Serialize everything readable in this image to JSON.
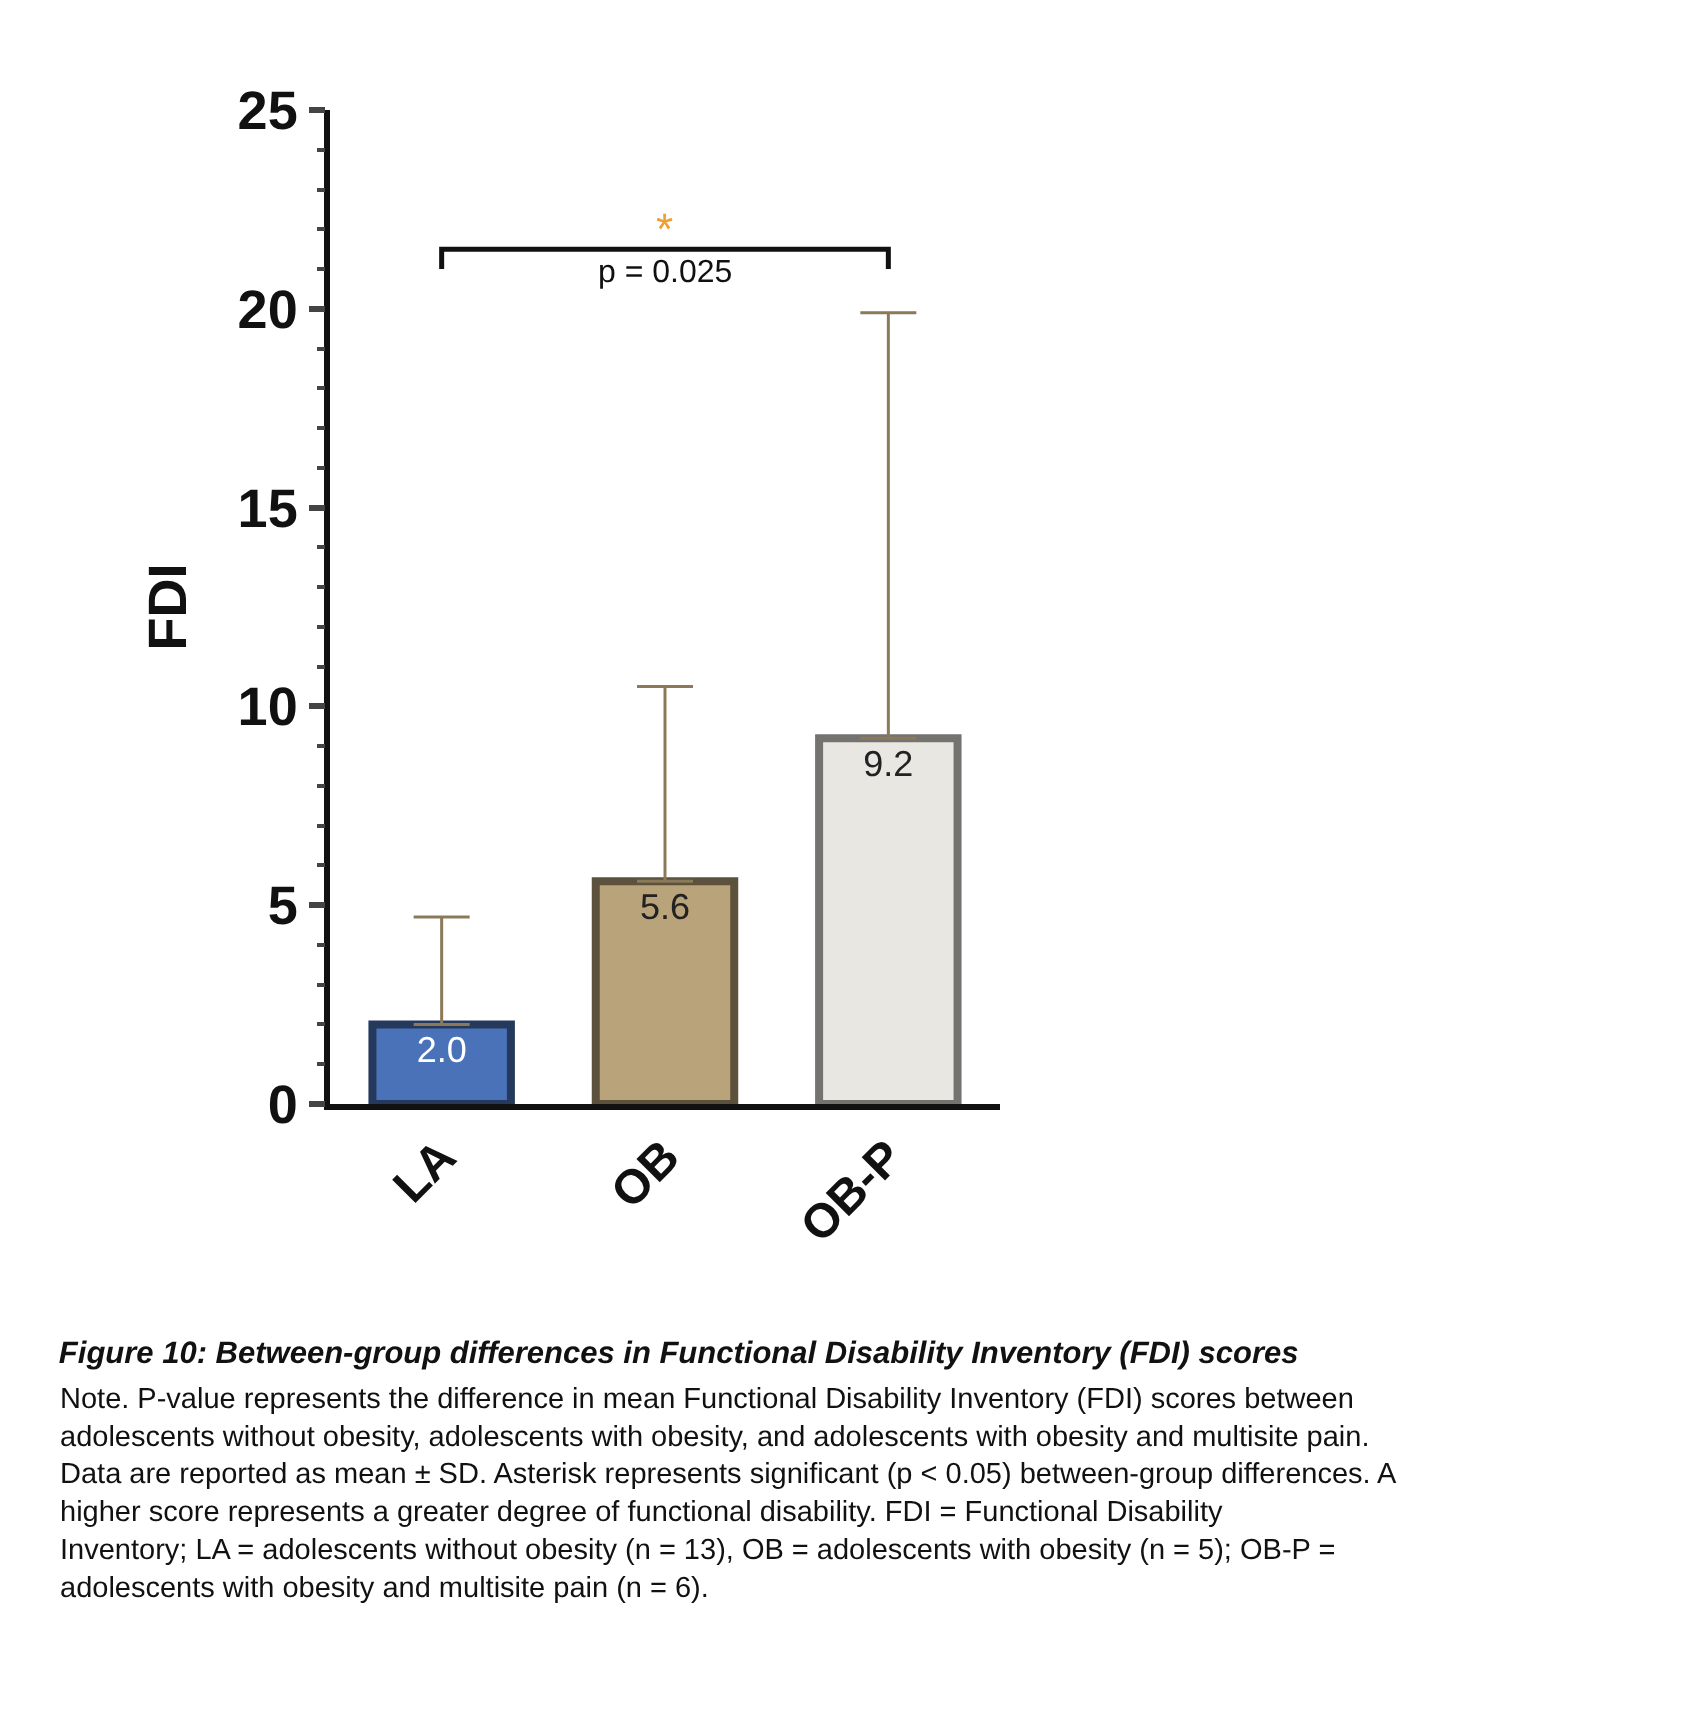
{
  "chart_data": {
    "type": "bar",
    "title": "Figure 10: Between-group differences in Functional Disability Inventory (FDI) scores",
    "ylabel": "FDI",
    "categories": [
      "LA",
      "OB",
      "OB-P"
    ],
    "values": [
      2.0,
      5.6,
      9.2
    ],
    "colors": [
      "#4a72b8",
      "#b9a37b",
      "#e9e7e1"
    ],
    "errors": [
      [
        2.0,
        4.7
      ],
      [
        5.6,
        10.5
      ],
      [
        9.2,
        19.9
      ]
    ],
    "value_labels": [
      "2.0",
      "5.6",
      "9.2"
    ],
    "ylim": [
      0,
      25
    ],
    "yticks": [
      0,
      5,
      10,
      15,
      20,
      25
    ],
    "annotations": [
      "*",
      "p = 0.025",
      "Note. P-value represents the difference in mean Functional Disability Inventory (FDI) scores between adolescents without obesity, adolescents with obesity, and adolescents with obesity and multisite pain. Data are reported as mean ± SD. Asterisk represents significant (p < 0.05) between-group differences. A higher score represents a greater degree of functional disability. FDI = Functional Disability Inventory; LA = adolescents without obesity (n = 13), OB = adolescents with obesity (n = 5); OB-P = adolescents with obesity and multisite pain (n = 6)."
    ]
  }
}
